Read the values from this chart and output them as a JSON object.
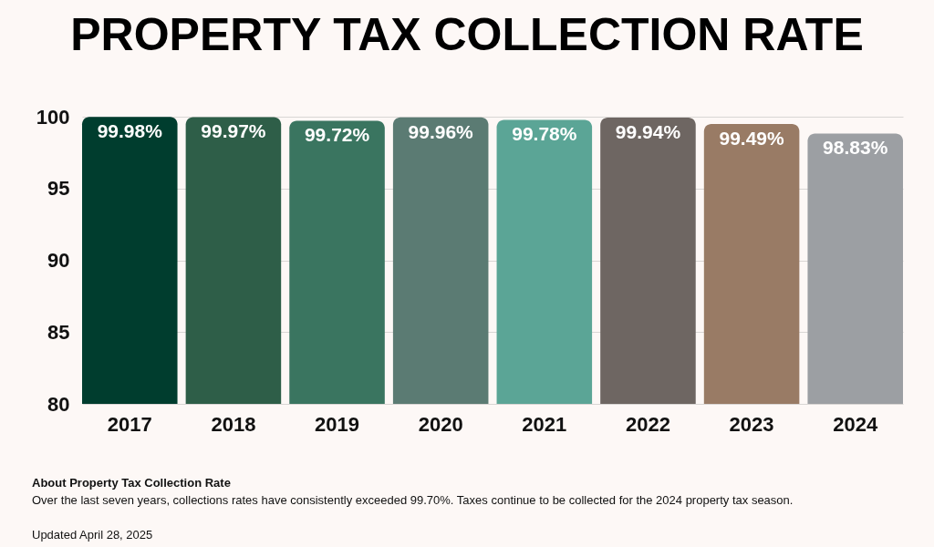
{
  "chart_data": {
    "type": "bar",
    "title": "PROPERTY TAX COLLECTION RATE",
    "categories": [
      "2017",
      "2018",
      "2019",
      "2020",
      "2021",
      "2022",
      "2023",
      "2024"
    ],
    "values": [
      99.98,
      99.97,
      99.72,
      99.96,
      99.78,
      99.94,
      99.49,
      98.83
    ],
    "colors": [
      "#003d2e",
      "#2e5e48",
      "#3a7560",
      "#5b7b73",
      "#5ba596",
      "#6e6662",
      "#997b65",
      "#9c9fa3"
    ],
    "value_labels": [
      "99.98%",
      "99.97%",
      "99.72%",
      "99.96%",
      "99.78%",
      "99.94%",
      "99.49%",
      "98.83%"
    ],
    "ylim": [
      80,
      100
    ],
    "yticks": [
      80,
      85,
      90,
      95,
      100
    ],
    "grid": "y",
    "annotations": [
      "About Property Tax Collection Rate",
      "Over the last seven years, collections rates have consistently exceeded 99.70%. Taxes continue to be collected for the 2024 property tax season.",
      "Updated April 28, 2025"
    ]
  }
}
